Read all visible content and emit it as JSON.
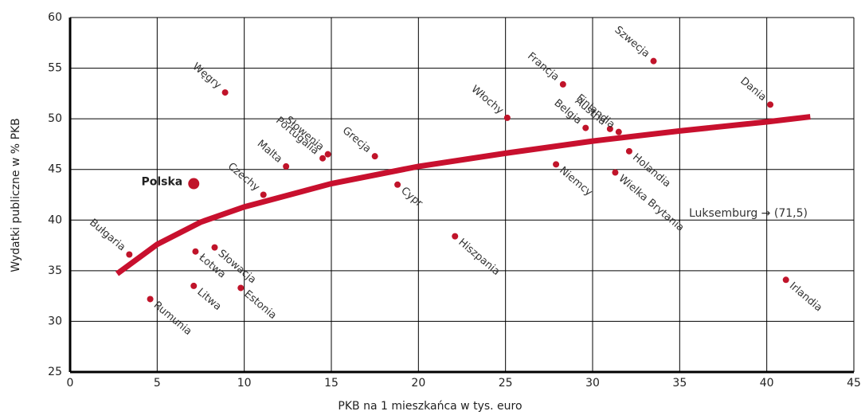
{
  "chart_data": {
    "type": "scatter",
    "x_label": "PKB na 1 mieszkańca w tys. euro",
    "y_label": "Wydatki publiczne w % PKB",
    "annotation": "Luksemburg → (71,5)",
    "labels": [
      "Węgry",
      "Polska",
      "Bułgaria",
      "Rumunia",
      "Litwa",
      "Łotwa",
      "Słowacja",
      "Estonia",
      "Czechy",
      "Malta",
      "Portugalia",
      "Słowenia",
      "Grecja",
      "Cypr",
      "Hiszpania",
      "Włochy",
      "Niemcy",
      "Francja",
      "Belgia",
      "Austria",
      "Finlandia",
      "Holandia",
      "Wielka Brytania",
      "Szwecja",
      "Dania",
      "Irlandia"
    ],
    "x": [
      8.9,
      7.1,
      3.4,
      4.6,
      7.1,
      7.2,
      8.3,
      9.8,
      11.1,
      12.4,
      14.5,
      14.8,
      17.5,
      18.8,
      22.1,
      25.1,
      27.9,
      28.3,
      29.6,
      31.0,
      31.5,
      32.1,
      31.3,
      33.5,
      40.2,
      41.1
    ],
    "values": [
      52.6,
      43.6,
      36.6,
      32.2,
      33.5,
      36.9,
      37.3,
      33.3,
      42.5,
      45.3,
      46.1,
      46.5,
      46.3,
      43.5,
      38.4,
      50.1,
      45.5,
      53.4,
      49.1,
      49.0,
      48.7,
      46.8,
      44.7,
      55.7,
      51.4,
      34.1
    ],
    "color": "#c0142a",
    "trend": {
      "color": "#c8102e",
      "x": [
        2.7,
        5,
        7.5,
        10,
        15,
        20,
        25,
        30,
        35,
        40,
        42.5
      ],
      "values": [
        34.7,
        37.6,
        39.8,
        41.3,
        43.6,
        45.3,
        46.6,
        47.8,
        48.8,
        49.7,
        50.2
      ]
    },
    "xlim": [
      0,
      45
    ],
    "xticks": [
      0,
      5,
      10,
      15,
      20,
      25,
      30,
      35,
      40,
      45
    ],
    "ylim": [
      25,
      60
    ],
    "yticks": [
      25,
      30,
      35,
      40,
      45,
      50,
      55,
      60
    ],
    "grid": true
  }
}
